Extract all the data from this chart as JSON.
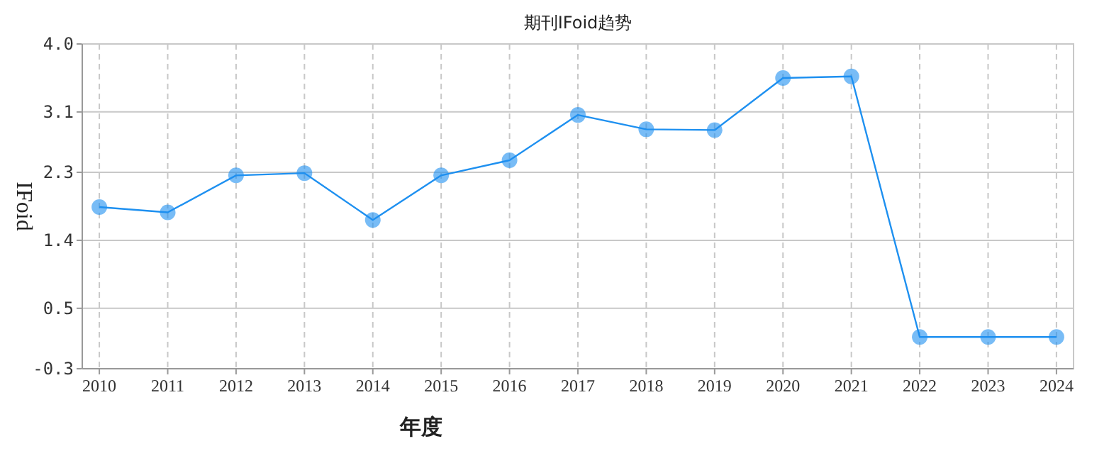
{
  "chart_data": {
    "type": "line",
    "title": "期刊IFoid趋势",
    "xlabel": "年度",
    "ylabel": "IFoid",
    "categories": [
      "2010",
      "2011",
      "2012",
      "2013",
      "2014",
      "2015",
      "2016",
      "2017",
      "2018",
      "2019",
      "2020",
      "2021",
      "2022",
      "2023",
      "2024"
    ],
    "series": [
      {
        "color": "#1e90f0",
        "values": [
          1.84,
          1.77,
          2.26,
          2.29,
          1.67,
          2.26,
          2.46,
          3.06,
          2.87,
          2.86,
          3.55,
          3.57,
          0.12,
          0.12,
          0.12
        ]
      }
    ],
    "ylim": [
      -0.3,
      4.0
    ],
    "yticks": [
      {
        "value": -0.3,
        "label": "-0.3"
      },
      {
        "value": 0.5,
        "label": "0.5"
      },
      {
        "value": 1.4,
        "label": "1.4"
      },
      {
        "value": 2.3,
        "label": "2.3"
      },
      {
        "value": 3.1,
        "label": "3.1"
      },
      {
        "value": 4.0,
        "label": "4.0"
      }
    ],
    "grid": true,
    "marker": "circle",
    "line_style": "solid"
  }
}
